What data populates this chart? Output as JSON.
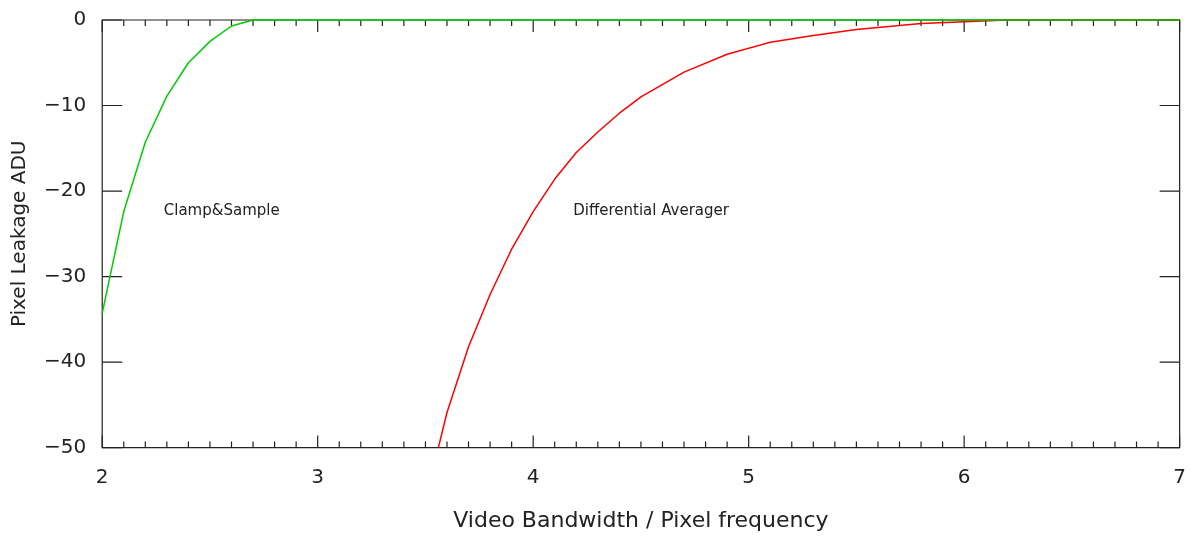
{
  "chart_data": {
    "type": "line",
    "xlabel": "Video Bandwidth / Pixel frequency",
    "ylabel": "Pixel Leakage ADU",
    "xlim": [
      2,
      7
    ],
    "ylim": [
      -50,
      0
    ],
    "xticks": [
      2,
      {
        "value": 2.1,
        "label": null
      },
      {
        "value": 2.2,
        "label": null
      },
      {
        "value": 2.3,
        "label": null
      },
      {
        "value": 2.4,
        "label": null
      },
      {
        "value": 2.5,
        "label": null
      },
      {
        "value": 2.6,
        "label": null
      },
      {
        "value": 2.7,
        "label": null
      },
      {
        "value": 2.8,
        "label": null
      },
      {
        "value": 2.9,
        "label": null
      },
      3,
      {
        "value": 3.1,
        "label": null
      },
      {
        "value": 3.2,
        "label": null
      },
      {
        "value": 3.3,
        "label": null
      },
      {
        "value": 3.4,
        "label": null
      },
      {
        "value": 3.5,
        "label": null
      },
      {
        "value": 3.6,
        "label": null
      },
      {
        "value": 3.7,
        "label": null
      },
      {
        "value": 3.8,
        "label": null
      },
      {
        "value": 3.9,
        "label": null
      },
      4,
      {
        "value": 4.1,
        "label": null
      },
      {
        "value": 4.2,
        "label": null
      },
      {
        "value": 4.3,
        "label": null
      },
      {
        "value": 4.4,
        "label": null
      },
      {
        "value": 4.5,
        "label": null
      },
      {
        "value": 4.6,
        "label": null
      },
      {
        "value": 4.7,
        "label": null
      },
      {
        "value": 4.8,
        "label": null
      },
      {
        "value": 4.9,
        "label": null
      },
      5,
      {
        "value": 5.1,
        "label": null
      },
      {
        "value": 5.2,
        "label": null
      },
      {
        "value": 5.3,
        "label": null
      },
      {
        "value": 5.4,
        "label": null
      },
      {
        "value": 5.5,
        "label": null
      },
      {
        "value": 5.6,
        "label": null
      },
      {
        "value": 5.7,
        "label": null
      },
      {
        "value": 5.8,
        "label": null
      },
      {
        "value": 5.9,
        "label": null
      },
      6,
      {
        "value": 6.1,
        "label": null
      },
      {
        "value": 6.2,
        "label": null
      },
      {
        "value": 6.3,
        "label": null
      },
      {
        "value": 6.4,
        "label": null
      },
      {
        "value": 6.5,
        "label": null
      },
      {
        "value": 6.6,
        "label": null
      },
      {
        "value": 6.7,
        "label": null
      },
      {
        "value": 6.8,
        "label": null
      },
      {
        "value": 6.9,
        "label": null
      },
      7
    ],
    "yticks": [
      {
        "value": -50,
        "label": "−50"
      },
      {
        "value": -40,
        "label": "−40"
      },
      {
        "value": -30,
        "label": "−30"
      },
      {
        "value": -20,
        "label": "−20"
      },
      {
        "value": -10,
        "label": "−10"
      },
      0
    ],
    "legend": false,
    "grid": false,
    "marker": "none",
    "line_style": "solid",
    "series": [
      {
        "name": "Clamp&Sample",
        "color": "#00cc00",
        "x": [
          2.0,
          2.1,
          2.2,
          2.3,
          2.4,
          2.5,
          2.6,
          2.7,
          7.0
        ],
        "values": [
          -34.3,
          -22.4,
          -14.3,
          -8.9,
          -5.0,
          -2.5,
          -0.7,
          0,
          0
        ]
      },
      {
        "name": "Differential Averager",
        "color": "#ff0000",
        "x": [
          3.56,
          3.6,
          3.7,
          3.8,
          3.9,
          4.0,
          4.1,
          4.2,
          4.3,
          4.4,
          4.5,
          4.7,
          4.9,
          5.1,
          5.3,
          5.5,
          5.8,
          6.0,
          6.2,
          6.5,
          7.0
        ],
        "values": [
          -50,
          -45.9,
          -38.2,
          -32.1,
          -26.8,
          -22.4,
          -18.6,
          -15.5,
          -13.1,
          -10.9,
          -9.0,
          -6.1,
          -4.0,
          -2.6,
          -1.8,
          -1.1,
          -0.4,
          -0.2,
          0,
          0,
          0
        ]
      }
    ]
  }
}
